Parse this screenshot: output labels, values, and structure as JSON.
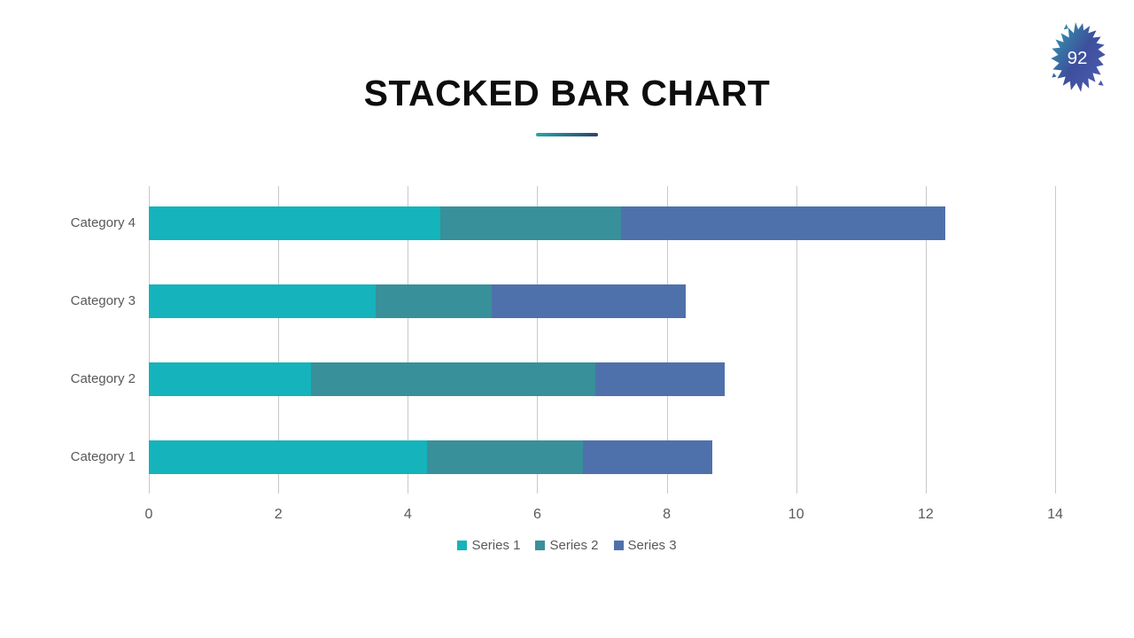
{
  "slide": {
    "title": "STACKED BAR CHART",
    "background": "#ffffff"
  },
  "page_badge": {
    "number": "92",
    "icon": "paint-splash-icon",
    "gradient_start": "#2fa3ae",
    "gradient_mid": "#3e4f9d",
    "gradient_end": "#4a5cae",
    "text_color": "#ffffff"
  },
  "accent": {
    "underline_start": "#2aa4ab",
    "underline_end": "#2e4369"
  },
  "colors": {
    "series1": "#15b3bb",
    "series2": "#38909b",
    "series3": "#4f71ab",
    "label_gray": "#595959",
    "gridline": "#c9c9c9",
    "title_text": "#0d0d0d"
  },
  "chart_data": {
    "type": "bar",
    "orientation": "horizontal",
    "stacked": true,
    "title": "STACKED BAR CHART",
    "categories": [
      "Category 1",
      "Category 2",
      "Category 3",
      "Category 4"
    ],
    "series": [
      {
        "name": "Series 1",
        "color": "#15b3bb",
        "values": [
          4.3,
          2.5,
          3.5,
          4.5
        ]
      },
      {
        "name": "Series 2",
        "color": "#38909b",
        "values": [
          2.4,
          4.4,
          1.8,
          2.8
        ]
      },
      {
        "name": "Series 3",
        "color": "#4f71ab",
        "values": [
          2.0,
          2.0,
          3.0,
          5.0
        ]
      }
    ],
    "totals": [
      8.7,
      8.9,
      8.3,
      12.3
    ],
    "x_axis": {
      "min": 0,
      "max": 14,
      "tick_step": 2,
      "tick_labels": [
        "0",
        "2",
        "4",
        "6",
        "8",
        "10",
        "12",
        "14"
      ]
    },
    "grid": true,
    "legend_position": "bottom",
    "category_order_top_to_bottom": [
      "Category 4",
      "Category 3",
      "Category 2",
      "Category 1"
    ]
  }
}
